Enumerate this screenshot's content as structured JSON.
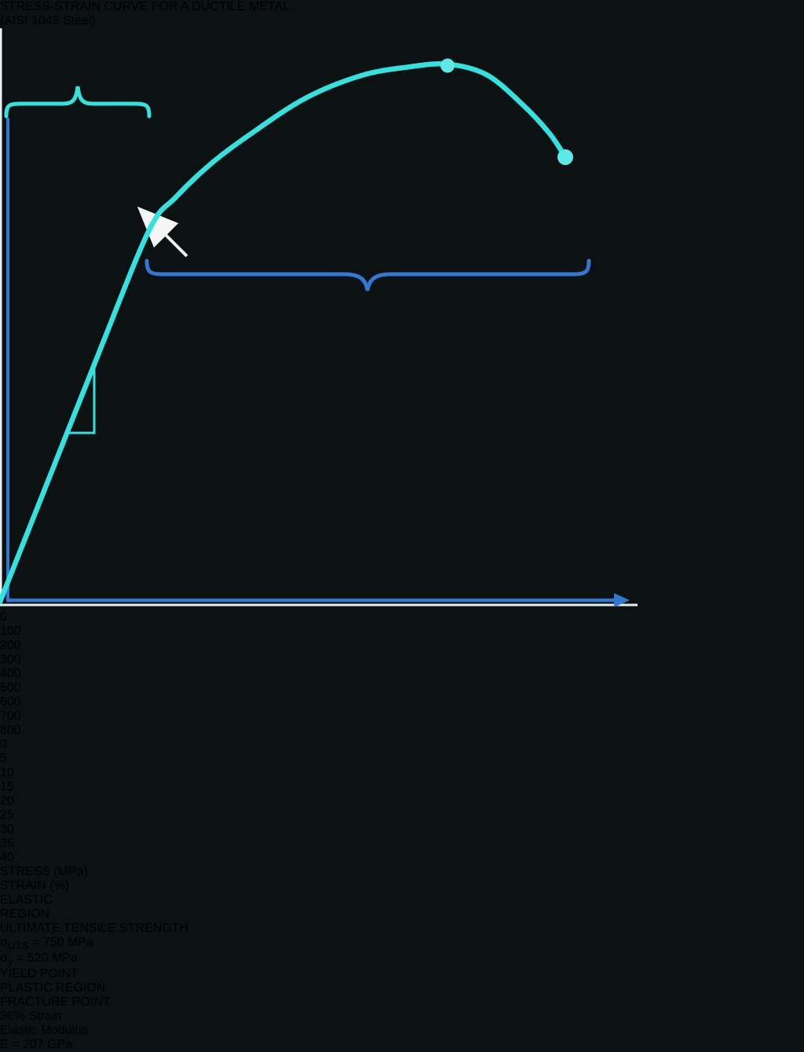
{
  "title": {
    "line1": "STRESS-STRAIN CURVE FOR A DUCTILE METAL",
    "line2": "(AISI 1045 Steel)"
  },
  "axes": {
    "y_title": "STRESS (MPa)",
    "x_title": "STRAIN (%)",
    "y_ticks": [
      "0",
      "100",
      "200",
      "300",
      "400",
      "500",
      "600",
      "700",
      "800"
    ],
    "x_ticks": [
      "0",
      "5",
      "10",
      "15",
      "20",
      "25",
      "30",
      "36",
      "40"
    ]
  },
  "annotations": {
    "elastic_region_line1": "ELASTIC",
    "elastic_region_line2": "REGION",
    "plastic_region": "PLASTIC REGION",
    "yield_point": "YIELD POINT",
    "uts": {
      "heading": "ULTIMATE TENSILE STRENGTH",
      "sigma": "σ",
      "subscript": "UTS",
      "value": " = 750 MPa"
    },
    "sigma_y": {
      "sigma": "σ",
      "subscript": "y",
      "value": " = 520 MPa"
    },
    "fracture": {
      "line1": "FRACTURE POINT",
      "line2": "36% Strain"
    },
    "modulus": {
      "line1": "Elastic Modulus",
      "line2": "E = 207 GPa"
    }
  },
  "colors": {
    "background": "#161d1f",
    "curve_cyan": "#33e2df",
    "marker_cyan": "#5ceae8",
    "cyan_text": "#3edcda",
    "accent_blue": "#3377d4",
    "blue_text": "#3079d9",
    "white_text": "#f2f5f5",
    "grid": "rgba(190,210,210,0.12)"
  },
  "chart_data": {
    "type": "line",
    "title": "STRESS-STRAIN CURVE FOR A DUCTILE METAL (AISI 1045 Steel)",
    "xlabel": "STRAIN (%)",
    "ylabel": "STRESS (MPa)",
    "xlim": [
      0,
      40
    ],
    "ylim": [
      0,
      800
    ],
    "x_tick_values": [
      0,
      5,
      10,
      15,
      20,
      25,
      30,
      36,
      40
    ],
    "y_tick_values": [
      0,
      100,
      200,
      300,
      400,
      500,
      600,
      700,
      800
    ],
    "grid": true,
    "series": [
      {
        "name": "AISI 1045 steel stress-strain curve",
        "color": "#33e2df",
        "points": [
          [
            0,
            0
          ],
          [
            3.2,
            177
          ],
          [
            6.4,
            354
          ],
          [
            9.5,
            520
          ],
          [
            11.2,
            566
          ],
          [
            13.5,
            614
          ],
          [
            16,
            655
          ],
          [
            19.5,
            705
          ],
          [
            23,
            736
          ],
          [
            26,
            748
          ],
          [
            28.5,
            752
          ],
          [
            31,
            737
          ],
          [
            33.3,
            695
          ],
          [
            35,
            655
          ],
          [
            36,
            622
          ]
        ]
      }
    ],
    "key_points": {
      "yield": {
        "strain_pct": 9.5,
        "stress_mpa": 520,
        "label": "YIELD POINT"
      },
      "uts": {
        "strain_pct": 28.5,
        "stress_mpa": 750,
        "label": "ULTIMATE TENSILE STRENGTH"
      },
      "fracture": {
        "strain_pct": 36,
        "stress_mpa": 622,
        "label": "FRACTURE POINT 36% Strain"
      }
    },
    "regions": {
      "elastic": {
        "strain_from_pct": 0.5,
        "strain_to_pct": 9.5,
        "label": "ELASTIC REGION"
      },
      "plastic": {
        "strain_from_pct": 9.5,
        "strain_to_pct": 37.5,
        "label": "PLASTIC REGION"
      }
    },
    "elastic_modulus_gpa": 207,
    "yield_strength_mpa": 520,
    "ultimate_tensile_strength_mpa": 750,
    "fracture_strain_pct": 36
  }
}
